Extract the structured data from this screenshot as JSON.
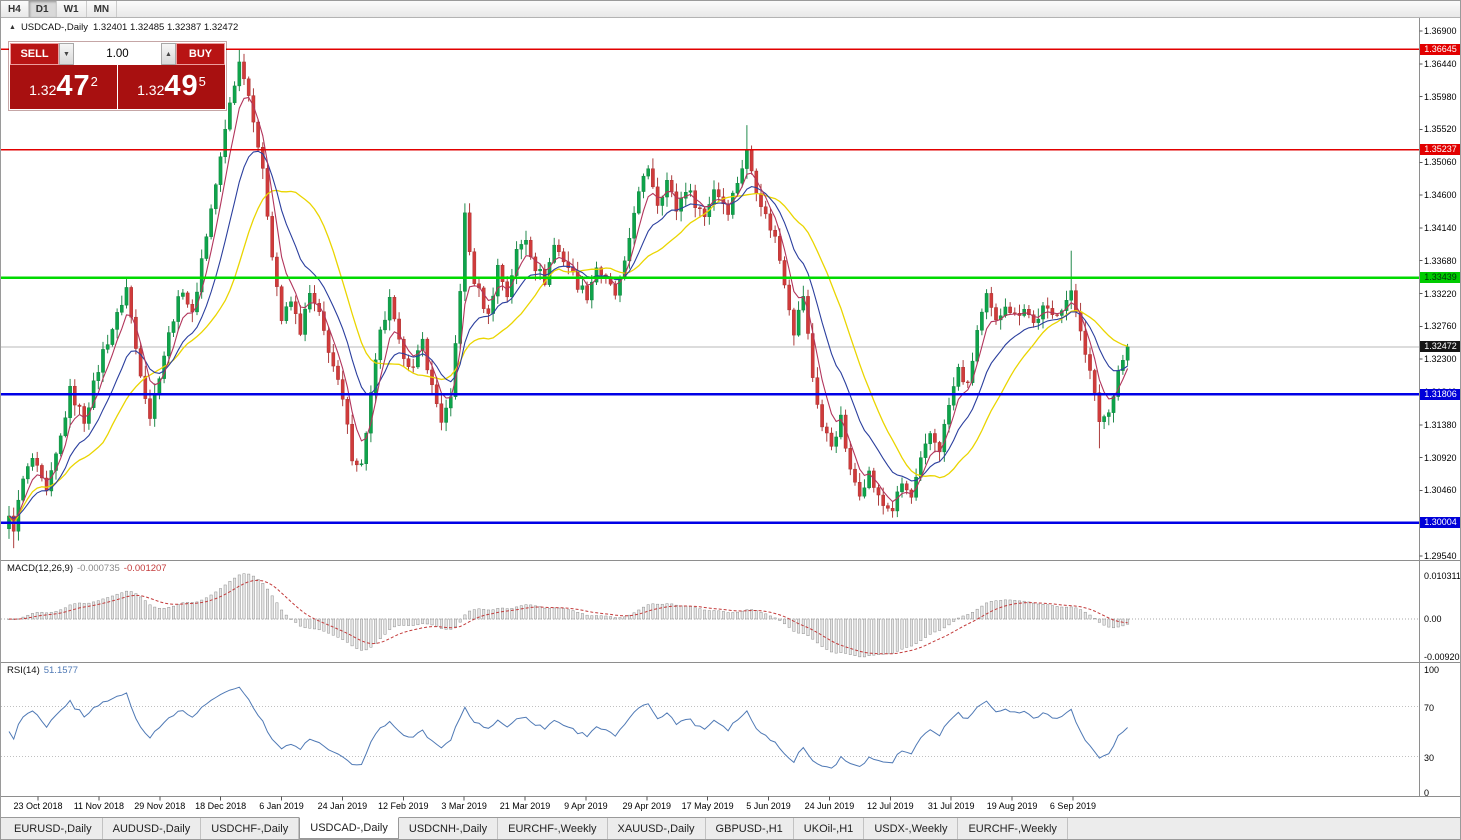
{
  "toolbar": {
    "timeframes": [
      "H4",
      "D1",
      "W1",
      "MN"
    ],
    "active_timeframe": "D1"
  },
  "chart": {
    "collapse_icon": "▲",
    "symbol_title": "USDCAD-,Daily",
    "ohlc_line": "1.32401 1.32485 1.32387 1.32472",
    "trade_panel": {
      "sell_label": "SELL",
      "buy_label": "BUY",
      "volume": "1.00",
      "spin_down_glyph": "▼",
      "spin_up_glyph": "▲",
      "sell_price_base": "1.32",
      "sell_price_big": "47",
      "sell_price_sup": "2",
      "buy_price_base": "1.32",
      "buy_price_big": "49",
      "buy_price_sup": "5"
    },
    "price_axis": {
      "max": 1.369,
      "min": 1.2954,
      "ticks": [
        "1.36900",
        "1.36440",
        "1.35980",
        "1.35520",
        "1.35060",
        "1.34600",
        "1.34140",
        "1.33680",
        "1.33220",
        "1.32760",
        "1.32300",
        "1.31840",
        "1.31380",
        "1.30920",
        "1.30460",
        "1.30000",
        "1.29540"
      ]
    },
    "levels": [
      {
        "price": 1.36645,
        "label": "1.36645",
        "color": "#e20000",
        "thickness": 1.4,
        "tag_bg": "#e20000",
        "tag_fg": "#ffffff"
      },
      {
        "price": 1.35237,
        "label": "1.35237",
        "color": "#e20000",
        "thickness": 1.4,
        "tag_bg": "#e20000",
        "tag_fg": "#ffffff"
      },
      {
        "price": 1.33439,
        "label": "1.33439",
        "color": "#00d900",
        "thickness": 2.6,
        "tag_bg": "#00cc00",
        "tag_fg": "#00330a"
      },
      {
        "price": 1.31806,
        "label": "1.31806",
        "color": "#0000e6",
        "thickness": 2.6,
        "tag_bg": "#0000d9",
        "tag_fg": "#ffffff"
      },
      {
        "price": 1.30004,
        "label": "1.30004",
        "color": "#0000e6",
        "thickness": 2.6,
        "tag_bg": "#0000d9",
        "tag_fg": "#ffffff"
      }
    ],
    "current_price": {
      "value": 1.32472,
      "label": "1.32472",
      "line_color": "#b8b8b8",
      "tag_bg": "#161616",
      "tag_fg": "#ffffff"
    },
    "candle_colors": {
      "bull": "#0ea44b",
      "bull_stroke": "#0a7d39",
      "bear": "#d03b3b",
      "bear_stroke": "#a32828"
    },
    "ma_colors": {
      "fast": "#b2355c",
      "medium": "#2b3f9e",
      "slow": "#ead500"
    }
  },
  "macd": {
    "label": "MACD(12,26,9)",
    "value_main": "-0.000735",
    "value_signal": "-0.001207",
    "axis_ticks": [
      "0.010311",
      "0.00",
      "-0.009203"
    ],
    "histogram_fill": "#e6e6e6",
    "histogram_stroke": "#8f8f8f",
    "signal_color": "#c33b3b"
  },
  "rsi": {
    "label": "RSI(14)",
    "value": "51.1577",
    "axis_ticks": [
      "100",
      "70",
      "30",
      "0"
    ],
    "levels": [
      70,
      30
    ],
    "line_color": "#4f79b5"
  },
  "time_axis": {
    "dates": [
      "23 Oct 2018",
      "11 Nov 2018",
      "29 Nov 2018",
      "18 Dec 2018",
      "6 Jan 2019",
      "24 Jan 2019",
      "12 Feb 2019",
      "3 Mar 2019",
      "21 Mar 2019",
      "9 Apr 2019",
      "29 Apr 2019",
      "17 May 2019",
      "5 Jun 2019",
      "24 Jun 2019",
      "12 Jul 2019",
      "31 Jul 2019",
      "19 Aug 2019",
      "6 Sep 2019"
    ]
  },
  "tabs": {
    "items": [
      "EURUSD-,Daily",
      "AUDUSD-,Daily",
      "USDCHF-,Daily",
      "USDCAD-,Daily",
      "USDCNH-,Daily",
      "EURCHF-,Weekly",
      "XAUUSD-,Daily",
      "GBPUSD-,H1",
      "UKOil-,H1",
      "USDX-,Weekly",
      "EURCHF-,Weekly"
    ],
    "active": "USDCAD-,Daily"
  },
  "chart_data": {
    "type": "candlestick",
    "symbol": "USDCAD",
    "timeframe": "Daily",
    "x_range": [
      "23 Oct 2018",
      "6 Sep 2019"
    ],
    "price_range": [
      1.2954,
      1.369
    ],
    "last_ohlc": {
      "open": 1.32401,
      "high": 1.32485,
      "low": 1.32387,
      "close": 1.32472
    },
    "horizontal_levels": [
      1.36645,
      1.35237,
      1.33439,
      1.31806,
      1.30004
    ],
    "indicators": {
      "macd": {
        "fast": 12,
        "slow": 26,
        "signal": 9,
        "last": [
          -0.000735,
          -0.001207
        ],
        "axis": [
          0.010311,
          -0.009203
        ]
      },
      "rsi": {
        "period": 14,
        "last": 51.1577,
        "levels": [
          70,
          30
        ]
      }
    },
    "close_path": [
      [
        0,
        1.3005
      ],
      [
        1,
        1.2995
      ],
      [
        3,
        1.306
      ],
      [
        5,
        1.309
      ],
      [
        8,
        1.304
      ],
      [
        11,
        1.312
      ],
      [
        13,
        1.3185
      ],
      [
        16,
        1.3145
      ],
      [
        20,
        1.324
      ],
      [
        23,
        1.329
      ],
      [
        25,
        1.333
      ],
      [
        27,
        1.3245
      ],
      [
        30,
        1.315
      ],
      [
        32,
        1.321
      ],
      [
        35,
        1.329
      ],
      [
        37,
        1.333
      ],
      [
        39,
        1.329
      ],
      [
        41,
        1.337
      ],
      [
        43,
        1.344
      ],
      [
        45,
        1.351
      ],
      [
        47,
        1.359
      ],
      [
        49,
        1.3645
      ],
      [
        50,
        1.363
      ],
      [
        52,
        1.357
      ],
      [
        54,
        1.349
      ],
      [
        56,
        1.338
      ],
      [
        58,
        1.3285
      ],
      [
        60,
        1.331
      ],
      [
        62,
        1.327
      ],
      [
        64,
        1.332
      ],
      [
        66,
        1.329
      ],
      [
        68,
        1.3245
      ],
      [
        71,
        1.317
      ],
      [
        73,
        1.3095
      ],
      [
        75,
        1.308
      ],
      [
        77,
        1.318
      ],
      [
        79,
        1.3265
      ],
      [
        81,
        1.331
      ],
      [
        83,
        1.325
      ],
      [
        86,
        1.3215
      ],
      [
        88,
        1.3255
      ],
      [
        90,
        1.319
      ],
      [
        92,
        1.3145
      ],
      [
        94,
        1.317
      ],
      [
        96,
        1.333
      ],
      [
        97,
        1.343
      ],
      [
        98,
        1.338
      ],
      [
        99,
        1.334
      ],
      [
        102,
        1.329
      ],
      [
        104,
        1.336
      ],
      [
        106,
        1.332
      ],
      [
        108,
        1.338
      ],
      [
        110,
        1.34
      ],
      [
        112,
        1.336
      ],
      [
        114,
        1.334
      ],
      [
        116,
        1.339
      ],
      [
        119,
        1.336
      ],
      [
        121,
        1.3335
      ],
      [
        123,
        1.332
      ],
      [
        125,
        1.336
      ],
      [
        127,
        1.334
      ],
      [
        129,
        1.332
      ],
      [
        131,
        1.336
      ],
      [
        133,
        1.344
      ],
      [
        136,
        1.35
      ],
      [
        138,
        1.345
      ],
      [
        140,
        1.348
      ],
      [
        142,
        1.344
      ],
      [
        144,
        1.347
      ],
      [
        146,
        1.345
      ],
      [
        148,
        1.343
      ],
      [
        150,
        1.347
      ],
      [
        153,
        1.344
      ],
      [
        155,
        1.348
      ],
      [
        157,
        1.352
      ],
      [
        159,
        1.347
      ],
      [
        161,
        1.343
      ],
      [
        163,
        1.34
      ],
      [
        165,
        1.334
      ],
      [
        167,
        1.327
      ],
      [
        169,
        1.332
      ],
      [
        171,
        1.3205
      ],
      [
        173,
        1.3135
      ],
      [
        175,
        1.311
      ],
      [
        177,
        1.3145
      ],
      [
        179,
        1.307
      ],
      [
        181,
        1.3045
      ],
      [
        183,
        1.307
      ],
      [
        185,
        1.3035
      ],
      [
        186,
        1.3025
      ],
      [
        188,
        1.302
      ],
      [
        190,
        1.3055
      ],
      [
        192,
        1.3035
      ],
      [
        194,
        1.3085
      ],
      [
        196,
        1.3125
      ],
      [
        198,
        1.3105
      ],
      [
        200,
        1.3165
      ],
      [
        202,
        1.3215
      ],
      [
        204,
        1.319
      ],
      [
        206,
        1.327
      ],
      [
        208,
        1.3315
      ],
      [
        210,
        1.328
      ],
      [
        212,
        1.331
      ],
      [
        214,
        1.329
      ],
      [
        216,
        1.3305
      ],
      [
        218,
        1.328
      ],
      [
        220,
        1.33
      ],
      [
        222,
        1.329
      ],
      [
        224,
        1.3305
      ],
      [
        226,
        1.332
      ],
      [
        228,
        1.3275
      ],
      [
        230,
        1.321
      ],
      [
        232,
        1.3145
      ],
      [
        234,
        1.3155
      ],
      [
        236,
        1.3215
      ],
      [
        238,
        1.32472
      ]
    ],
    "wick_marks": [
      {
        "i": 1,
        "low": 1.2965
      },
      {
        "i": 49,
        "high": 1.36645
      },
      {
        "i": 157,
        "high": 1.3558
      },
      {
        "i": 188,
        "low": 1.3016
      },
      {
        "i": 226,
        "high": 1.3382
      },
      {
        "i": 232,
        "low": 1.3105
      }
    ]
  }
}
